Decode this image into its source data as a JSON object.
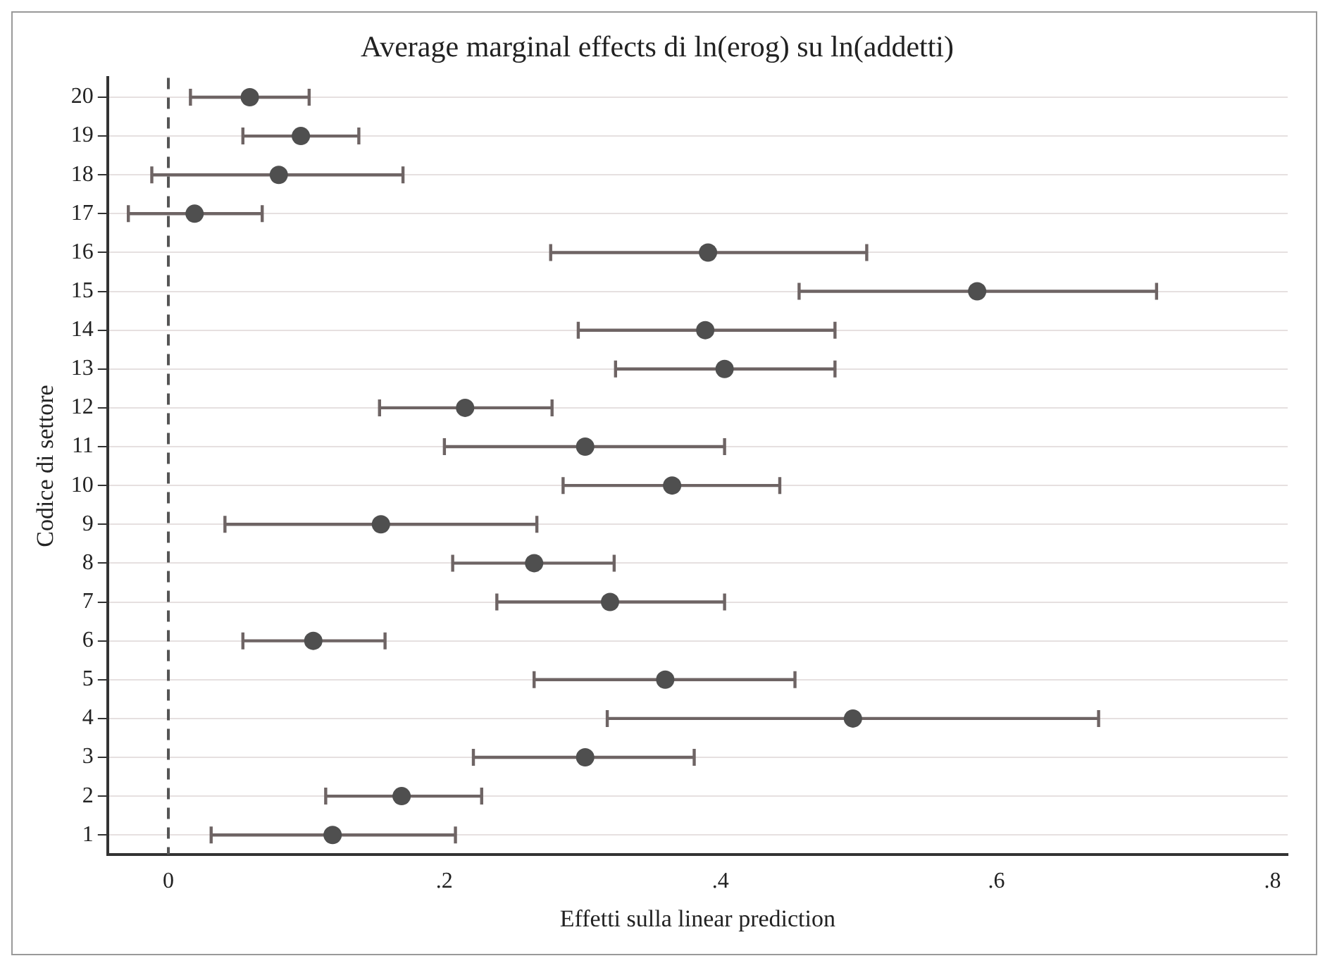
{
  "chart_data": {
    "type": "scatter",
    "orientation": "horizontal",
    "title": "Average marginal effects di ln(erog) su ln(addetti)",
    "xlabel": "Effetti sulla linear prediction",
    "ylabel": "Codice di settore",
    "categories": [
      "20",
      "19",
      "18",
      "17",
      "16",
      "15",
      "14",
      "13",
      "12",
      "11",
      "10",
      "9",
      "8",
      "7",
      "6",
      "5",
      "4",
      "3",
      "2",
      "1"
    ],
    "series": [
      {
        "color": "#4f4f4f",
        "values": [
          0.059,
          0.096,
          0.08,
          0.019,
          0.391,
          0.586,
          0.389,
          0.403,
          0.215,
          0.302,
          0.365,
          0.154,
          0.265,
          0.32,
          0.105,
          0.36,
          0.496,
          0.302,
          0.169,
          0.119
        ],
        "errors": [
          [
            0.016,
            0.102
          ],
          [
            0.054,
            0.138
          ],
          [
            -0.012,
            0.17
          ],
          [
            -0.029,
            0.068
          ],
          [
            0.277,
            0.506
          ],
          [
            0.457,
            0.716
          ],
          [
            0.297,
            0.483
          ],
          [
            0.324,
            0.483
          ],
          [
            0.153,
            0.278
          ],
          [
            0.2,
            0.403
          ],
          [
            0.286,
            0.443
          ],
          [
            0.041,
            0.267
          ],
          [
            0.206,
            0.323
          ],
          [
            0.238,
            0.403
          ],
          [
            0.054,
            0.157
          ],
          [
            0.265,
            0.454
          ],
          [
            0.318,
            0.674
          ],
          [
            0.221,
            0.381
          ],
          [
            0.114,
            0.227
          ],
          [
            0.031,
            0.208
          ]
        ]
      }
    ],
    "xlim": [
      -0.044,
      0.811
    ],
    "xticks": [
      0,
      {
        "value": 0.2,
        "label": ".2"
      },
      {
        "value": 0.4,
        "label": ".4"
      },
      {
        "value": 0.6,
        "label": ".6"
      },
      {
        "value": 0.8,
        "label": ".8"
      }
    ],
    "ref_lines": [
      {
        "axis": "x",
        "value": 0,
        "color": "#555555",
        "line_style": "dashed"
      }
    ],
    "grid": "y",
    "marker": "circle",
    "legend": false
  }
}
